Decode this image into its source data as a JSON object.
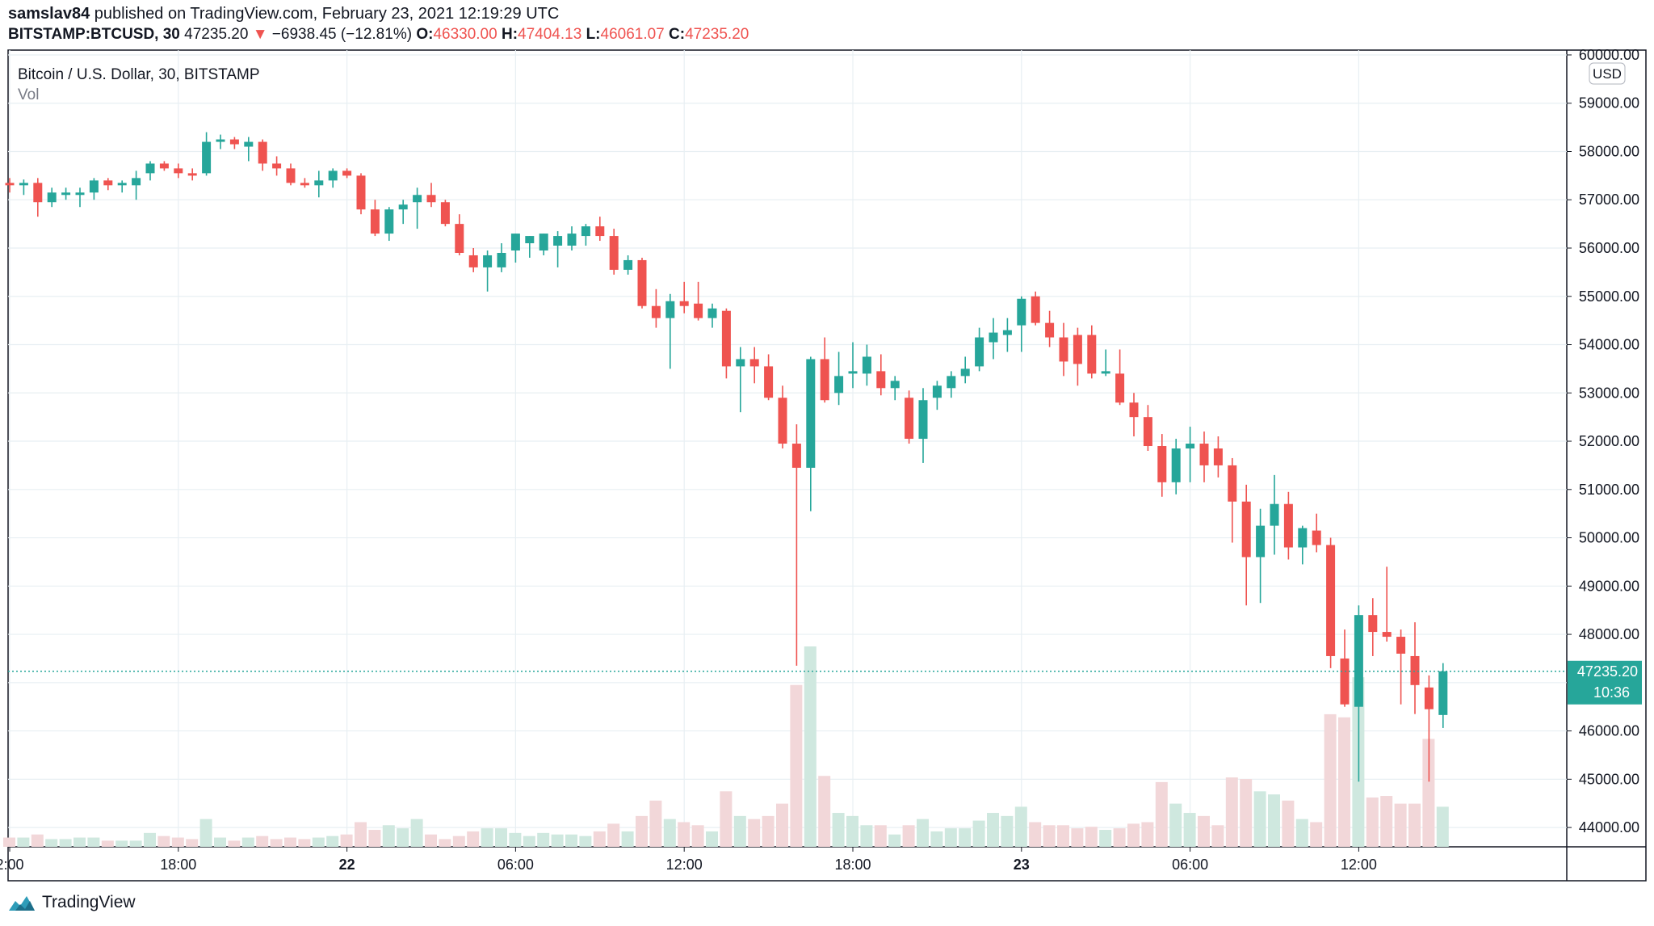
{
  "header": {
    "publisher_user": "samslav84",
    "publisher_text": "published on TradingView.com, February 23, 2021 12:19:29 UTC",
    "symbol": "BITSTAMP:BTCUSD, 30",
    "last": "47235.20",
    "change_arrow": "▼",
    "change": "−6938.45 (−12.81%)",
    "o_label": "O:",
    "o": "46330.00",
    "h_label": "H:",
    "h": "47404.13",
    "l_label": "L:",
    "l": "46061.07",
    "c_label": "C:",
    "c": "47235.20"
  },
  "legend": {
    "title": "Bitcoin / U.S. Dollar, 30, BITSTAMP",
    "vol_label": "Vol"
  },
  "price_axis": {
    "currency": "USD",
    "last_price_label": "47235.20",
    "countdown_label": "10:36"
  },
  "footer": {
    "brand": "TradingView"
  },
  "colors": {
    "up": "#26a69a",
    "down": "#ef5350",
    "vol_up": "#cfe8df",
    "vol_down": "#f2d7d9",
    "grid": "#e8eff3",
    "last_price": "#26a69a"
  },
  "chart_data": {
    "type": "candlestick",
    "title": "Bitcoin / U.S. Dollar, 30, BITSTAMP",
    "x_tick_labels": [
      "2:00",
      "18:00",
      "22",
      "06:00",
      "12:00",
      "18:00",
      "23",
      "06:00",
      "12:00"
    ],
    "x_tick_bar_index": [
      0,
      12,
      24,
      36,
      48,
      60,
      72,
      84,
      96
    ],
    "y_tick_labels": [
      "44000.00",
      "45000.00",
      "46000.00",
      "47000.00",
      "48000.00",
      "49000.00",
      "50000.00",
      "51000.00",
      "52000.00",
      "53000.00",
      "54000.00",
      "55000.00",
      "56000.00",
      "57000.00",
      "58000.00",
      "59000.00",
      "60000.00"
    ],
    "ylim": [
      43600,
      60100
    ],
    "grid": true,
    "last_price": 47235.2,
    "bars": [
      {
        "o": 57350,
        "h": 57450,
        "l": 57150,
        "c": 57300,
        "v": 6
      },
      {
        "o": 57300,
        "h": 57420,
        "l": 57100,
        "c": 57350,
        "v": 6
      },
      {
        "o": 57350,
        "h": 57450,
        "l": 56650,
        "c": 56950,
        "v": 8
      },
      {
        "o": 56950,
        "h": 57250,
        "l": 56850,
        "c": 57150,
        "v": 5
      },
      {
        "o": 57100,
        "h": 57250,
        "l": 57000,
        "c": 57150,
        "v": 5
      },
      {
        "o": 57100,
        "h": 57250,
        "l": 56850,
        "c": 57150,
        "v": 6
      },
      {
        "o": 57150,
        "h": 57450,
        "l": 57000,
        "c": 57400,
        "v": 6
      },
      {
        "o": 57400,
        "h": 57450,
        "l": 57200,
        "c": 57300,
        "v": 4
      },
      {
        "o": 57300,
        "h": 57400,
        "l": 57150,
        "c": 57350,
        "v": 4
      },
      {
        "o": 57300,
        "h": 57600,
        "l": 57000,
        "c": 57450,
        "v": 4
      },
      {
        "o": 57550,
        "h": 57800,
        "l": 57400,
        "c": 57750,
        "v": 9
      },
      {
        "o": 57750,
        "h": 57800,
        "l": 57600,
        "c": 57650,
        "v": 7
      },
      {
        "o": 57650,
        "h": 57750,
        "l": 57450,
        "c": 57550,
        "v": 6
      },
      {
        "o": 57550,
        "h": 57650,
        "l": 57400,
        "c": 57500,
        "v": 5
      },
      {
        "o": 57550,
        "h": 58400,
        "l": 57500,
        "c": 58200,
        "v": 18
      },
      {
        "o": 58200,
        "h": 58350,
        "l": 58050,
        "c": 58250,
        "v": 6
      },
      {
        "o": 58250,
        "h": 58300,
        "l": 58050,
        "c": 58150,
        "v": 4
      },
      {
        "o": 58100,
        "h": 58300,
        "l": 57800,
        "c": 58200,
        "v": 6
      },
      {
        "o": 58200,
        "h": 58250,
        "l": 57600,
        "c": 57750,
        "v": 7
      },
      {
        "o": 57750,
        "h": 57900,
        "l": 57500,
        "c": 57650,
        "v": 5
      },
      {
        "o": 57650,
        "h": 57750,
        "l": 57300,
        "c": 57350,
        "v": 6
      },
      {
        "o": 57350,
        "h": 57450,
        "l": 57250,
        "c": 57300,
        "v": 5
      },
      {
        "o": 57300,
        "h": 57600,
        "l": 57050,
        "c": 57400,
        "v": 6
      },
      {
        "o": 57400,
        "h": 57650,
        "l": 57250,
        "c": 57600,
        "v": 7
      },
      {
        "o": 57600,
        "h": 57650,
        "l": 57450,
        "c": 57500,
        "v": 8
      },
      {
        "o": 57500,
        "h": 57550,
        "l": 56700,
        "c": 56800,
        "v": 16
      },
      {
        "o": 56800,
        "h": 57000,
        "l": 56250,
        "c": 56300,
        "v": 11
      },
      {
        "o": 56300,
        "h": 56850,
        "l": 56150,
        "c": 56800,
        "v": 14
      },
      {
        "o": 56800,
        "h": 57000,
        "l": 56500,
        "c": 56900,
        "v": 12
      },
      {
        "o": 56950,
        "h": 57250,
        "l": 56400,
        "c": 57100,
        "v": 18
      },
      {
        "o": 57100,
        "h": 57350,
        "l": 56850,
        "c": 56950,
        "v": 8
      },
      {
        "o": 56950,
        "h": 57000,
        "l": 56450,
        "c": 56500,
        "v": 5
      },
      {
        "o": 56500,
        "h": 56700,
        "l": 55850,
        "c": 55900,
        "v": 7
      },
      {
        "o": 55850,
        "h": 56000,
        "l": 55500,
        "c": 55600,
        "v": 10
      },
      {
        "o": 55600,
        "h": 55950,
        "l": 55100,
        "c": 55850,
        "v": 12
      },
      {
        "o": 55600,
        "h": 56100,
        "l": 55500,
        "c": 55900,
        "v": 12
      },
      {
        "o": 55950,
        "h": 56300,
        "l": 55700,
        "c": 56300,
        "v": 9
      },
      {
        "o": 56100,
        "h": 56250,
        "l": 55800,
        "c": 56250,
        "v": 7
      },
      {
        "o": 55950,
        "h": 56300,
        "l": 55850,
        "c": 56300,
        "v": 9
      },
      {
        "o": 56050,
        "h": 56350,
        "l": 55600,
        "c": 56250,
        "v": 8
      },
      {
        "o": 56050,
        "h": 56450,
        "l": 55950,
        "c": 56300,
        "v": 8
      },
      {
        "o": 56250,
        "h": 56500,
        "l": 56050,
        "c": 56450,
        "v": 7
      },
      {
        "o": 56450,
        "h": 56650,
        "l": 56150,
        "c": 56250,
        "v": 10
      },
      {
        "o": 56250,
        "h": 56400,
        "l": 55450,
        "c": 55550,
        "v": 15
      },
      {
        "o": 55550,
        "h": 55850,
        "l": 55450,
        "c": 55750,
        "v": 10
      },
      {
        "o": 55750,
        "h": 55800,
        "l": 54750,
        "c": 54800,
        "v": 20
      },
      {
        "o": 54800,
        "h": 55150,
        "l": 54350,
        "c": 54550,
        "v": 30
      },
      {
        "o": 54550,
        "h": 55050,
        "l": 53500,
        "c": 54900,
        "v": 18
      },
      {
        "o": 54900,
        "h": 55300,
        "l": 54650,
        "c": 54800,
        "v": 16
      },
      {
        "o": 54850,
        "h": 55300,
        "l": 54500,
        "c": 54550,
        "v": 14
      },
      {
        "o": 54550,
        "h": 54850,
        "l": 54350,
        "c": 54750,
        "v": 10
      },
      {
        "o": 54700,
        "h": 54750,
        "l": 53300,
        "c": 53550,
        "v": 36
      },
      {
        "o": 53550,
        "h": 53950,
        "l": 52600,
        "c": 53700,
        "v": 20
      },
      {
        "o": 53700,
        "h": 53950,
        "l": 53200,
        "c": 53550,
        "v": 18
      },
      {
        "o": 53550,
        "h": 53800,
        "l": 52850,
        "c": 52900,
        "v": 20
      },
      {
        "o": 52900,
        "h": 53150,
        "l": 51850,
        "c": 51950,
        "v": 28
      },
      {
        "o": 51950,
        "h": 52350,
        "l": 47350,
        "c": 51450,
        "v": 105
      },
      {
        "o": 51450,
        "h": 53750,
        "l": 50550,
        "c": 53700,
        "v": 130
      },
      {
        "o": 53700,
        "h": 54150,
        "l": 52800,
        "c": 52850,
        "v": 46
      },
      {
        "o": 53000,
        "h": 53850,
        "l": 52750,
        "c": 53350,
        "v": 22
      },
      {
        "o": 53400,
        "h": 54050,
        "l": 53100,
        "c": 53450,
        "v": 20
      },
      {
        "o": 53400,
        "h": 54000,
        "l": 53150,
        "c": 53750,
        "v": 14
      },
      {
        "o": 53450,
        "h": 53800,
        "l": 52950,
        "c": 53100,
        "v": 14
      },
      {
        "o": 53100,
        "h": 53350,
        "l": 52850,
        "c": 53250,
        "v": 8
      },
      {
        "o": 52900,
        "h": 53050,
        "l": 51950,
        "c": 52050,
        "v": 14
      },
      {
        "o": 52050,
        "h": 53100,
        "l": 51550,
        "c": 52850,
        "v": 18
      },
      {
        "o": 52900,
        "h": 53250,
        "l": 52650,
        "c": 53150,
        "v": 10
      },
      {
        "o": 53100,
        "h": 53450,
        "l": 52900,
        "c": 53350,
        "v": 12
      },
      {
        "o": 53350,
        "h": 53750,
        "l": 53200,
        "c": 53500,
        "v": 12
      },
      {
        "o": 53550,
        "h": 54350,
        "l": 53450,
        "c": 54150,
        "v": 17
      },
      {
        "o": 54050,
        "h": 54550,
        "l": 53700,
        "c": 54250,
        "v": 22
      },
      {
        "o": 54200,
        "h": 54550,
        "l": 53850,
        "c": 54300,
        "v": 20
      },
      {
        "o": 54400,
        "h": 55000,
        "l": 53850,
        "c": 54950,
        "v": 26
      },
      {
        "o": 55000,
        "h": 55100,
        "l": 54400,
        "c": 54450,
        "v": 16
      },
      {
        "o": 54450,
        "h": 54700,
        "l": 53950,
        "c": 54150,
        "v": 14
      },
      {
        "o": 54150,
        "h": 54450,
        "l": 53350,
        "c": 53650,
        "v": 14
      },
      {
        "o": 54200,
        "h": 54350,
        "l": 53150,
        "c": 53600,
        "v": 12
      },
      {
        "o": 54200,
        "h": 54400,
        "l": 53300,
        "c": 53400,
        "v": 13
      },
      {
        "o": 53400,
        "h": 53900,
        "l": 53350,
        "c": 53450,
        "v": 11
      },
      {
        "o": 53400,
        "h": 53900,
        "l": 52750,
        "c": 52800,
        "v": 12
      },
      {
        "o": 52800,
        "h": 53000,
        "l": 52100,
        "c": 52500,
        "v": 15
      },
      {
        "o": 52500,
        "h": 52750,
        "l": 51800,
        "c": 51900,
        "v": 16
      },
      {
        "o": 51900,
        "h": 52150,
        "l": 50850,
        "c": 51150,
        "v": 42
      },
      {
        "o": 51150,
        "h": 52050,
        "l": 50900,
        "c": 51850,
        "v": 28
      },
      {
        "o": 51850,
        "h": 52300,
        "l": 51150,
        "c": 51950,
        "v": 22
      },
      {
        "o": 51950,
        "h": 52200,
        "l": 51150,
        "c": 51500,
        "v": 20
      },
      {
        "o": 51850,
        "h": 52100,
        "l": 51250,
        "c": 51500,
        "v": 14
      },
      {
        "o": 51500,
        "h": 51650,
        "l": 49900,
        "c": 50750,
        "v": 45
      },
      {
        "o": 50750,
        "h": 51100,
        "l": 48600,
        "c": 49600,
        "v": 44
      },
      {
        "o": 49600,
        "h": 50600,
        "l": 48650,
        "c": 50250,
        "v": 36
      },
      {
        "o": 50250,
        "h": 51300,
        "l": 49650,
        "c": 50700,
        "v": 34
      },
      {
        "o": 50700,
        "h": 50950,
        "l": 49550,
        "c": 49800,
        "v": 30
      },
      {
        "o": 49800,
        "h": 50250,
        "l": 49450,
        "c": 50200,
        "v": 18
      },
      {
        "o": 50150,
        "h": 50500,
        "l": 49700,
        "c": 49850,
        "v": 16
      },
      {
        "o": 49850,
        "h": 50000,
        "l": 47300,
        "c": 47550,
        "v": 86
      },
      {
        "o": 47500,
        "h": 48100,
        "l": 46500,
        "c": 46550,
        "v": 84
      },
      {
        "o": 46500,
        "h": 48600,
        "l": 44950,
        "c": 48400,
        "v": 110
      },
      {
        "o": 48400,
        "h": 48750,
        "l": 47550,
        "c": 48050,
        "v": 32
      },
      {
        "o": 48050,
        "h": 49400,
        "l": 47850,
        "c": 47950,
        "v": 33
      },
      {
        "o": 47950,
        "h": 48100,
        "l": 46550,
        "c": 47600,
        "v": 28
      },
      {
        "o": 47550,
        "h": 48250,
        "l": 46350,
        "c": 46950,
        "v": 28
      },
      {
        "o": 46900,
        "h": 47150,
        "l": 44950,
        "c": 46450,
        "v": 70
      },
      {
        "o": 46330,
        "h": 47404,
        "l": 46061,
        "c": 47235,
        "v": 26
      }
    ]
  }
}
